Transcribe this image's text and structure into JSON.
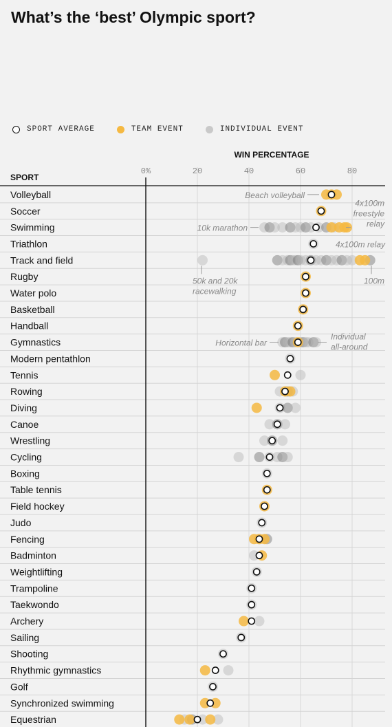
{
  "title": "What’s the ‘best’ Olympic sport?",
  "legend": {
    "average": "SPORT AVERAGE",
    "team": "TEAM EVENT",
    "individual": "INDIVIDUAL EVENT"
  },
  "colors": {
    "team": "#f5b942",
    "individual": "#b5b5b5",
    "individual_dark": "#6e6e6e",
    "average_fill": "#ffffff",
    "average_stroke": "#111111"
  },
  "chart_data": {
    "type": "scatter",
    "title": "What’s the ‘best’ Olympic sport?",
    "xlabel": "WIN PERCENTAGE",
    "ylabel": "SPORT",
    "xlim": [
      0,
      90
    ],
    "xticks": [
      0,
      20,
      40,
      60,
      80
    ],
    "xtick_labels": [
      "0%",
      "20",
      "40",
      "60",
      "80"
    ],
    "sports": [
      {
        "name": "Volleyball",
        "avg": 72,
        "team": [
          70,
          72,
          74
        ],
        "individual": []
      },
      {
        "name": "Soccer",
        "avg": 68,
        "team": [
          68
        ],
        "individual": []
      },
      {
        "name": "Swimming",
        "avg": 66,
        "team": [
          72,
          75,
          77,
          78
        ],
        "individual": [
          46,
          48,
          50,
          53,
          56,
          58,
          60,
          62,
          64,
          67,
          70,
          73
        ]
      },
      {
        "name": "Triathlon",
        "avg": 65,
        "team": [],
        "individual": [
          65
        ]
      },
      {
        "name": "Track and field",
        "avg": 64,
        "team": [
          83,
          85
        ],
        "individual": [
          22,
          51,
          53,
          55,
          56,
          57,
          58,
          59,
          60,
          62,
          64,
          66,
          68,
          70,
          72,
          74,
          76,
          78,
          80,
          87
        ]
      },
      {
        "name": "Rugby",
        "avg": 62,
        "team": [
          62
        ],
        "individual": []
      },
      {
        "name": "Water polo",
        "avg": 62,
        "team": [
          62
        ],
        "individual": []
      },
      {
        "name": "Basketball",
        "avg": 61,
        "team": [
          61
        ],
        "individual": []
      },
      {
        "name": "Handball",
        "avg": 59,
        "team": [
          59
        ],
        "individual": []
      },
      {
        "name": "Gymnastics",
        "avg": 59,
        "team": [
          59
        ],
        "individual": [
          53,
          54,
          55,
          56,
          57,
          58,
          60,
          61,
          62,
          63,
          65,
          66
        ]
      },
      {
        "name": "Modern pentathlon",
        "avg": 56,
        "team": [],
        "individual": [
          56
        ]
      },
      {
        "name": "Tennis",
        "avg": 55,
        "team": [
          50
        ],
        "individual": [
          60
        ]
      },
      {
        "name": "Rowing",
        "avg": 54,
        "team": [
          54,
          56
        ],
        "individual": [
          52,
          55,
          57
        ]
      },
      {
        "name": "Diving",
        "avg": 52,
        "team": [
          43
        ],
        "individual": [
          52,
          55,
          58
        ]
      },
      {
        "name": "Canoe",
        "avg": 51,
        "team": [],
        "individual": [
          48,
          51,
          54
        ]
      },
      {
        "name": "Wrestling",
        "avg": 49,
        "team": [],
        "individual": [
          46,
          49,
          53
        ]
      },
      {
        "name": "Cycling",
        "avg": 48,
        "team": [],
        "individual": [
          36,
          44,
          48,
          51,
          53,
          55
        ]
      },
      {
        "name": "Boxing",
        "avg": 47,
        "team": [],
        "individual": [
          47
        ]
      },
      {
        "name": "Table tennis",
        "avg": 47,
        "team": [
          47
        ],
        "individual": []
      },
      {
        "name": "Field hockey",
        "avg": 46,
        "team": [
          46
        ],
        "individual": []
      },
      {
        "name": "Judo",
        "avg": 45,
        "team": [],
        "individual": [
          45
        ]
      },
      {
        "name": "Fencing",
        "avg": 44,
        "team": [
          42,
          44,
          46
        ],
        "individual": [
          44,
          47
        ]
      },
      {
        "name": "Badminton",
        "avg": 44,
        "team": [
          45
        ],
        "individual": [
          42
        ]
      },
      {
        "name": "Weightlifting",
        "avg": 43,
        "team": [],
        "individual": [
          43
        ]
      },
      {
        "name": "Trampoline",
        "avg": 41,
        "team": [],
        "individual": [
          41
        ]
      },
      {
        "name": "Taekwondo",
        "avg": 41,
        "team": [],
        "individual": [
          41
        ]
      },
      {
        "name": "Archery",
        "avg": 41,
        "team": [
          38
        ],
        "individual": [
          44
        ]
      },
      {
        "name": "Sailing",
        "avg": 37,
        "team": [],
        "individual": [
          37
        ]
      },
      {
        "name": "Shooting",
        "avg": 30,
        "team": [],
        "individual": [
          30
        ]
      },
      {
        "name": "Rhythmic gymnastics",
        "avg": 27,
        "team": [
          23
        ],
        "individual": [
          32
        ]
      },
      {
        "name": "Golf",
        "avg": 26,
        "team": [],
        "individual": [
          26
        ]
      },
      {
        "name": "Synchronized swimming",
        "avg": 25,
        "team": [
          23,
          27
        ],
        "individual": []
      },
      {
        "name": "Equestrian",
        "avg": 20,
        "team": [
          13,
          17,
          25
        ],
        "individual": [
          15,
          18,
          22,
          28
        ]
      }
    ],
    "annotations": [
      {
        "text": "Beach volleyball",
        "row": "Volleyball"
      },
      {
        "text": "4x100m freestyle relay",
        "row": "Swimming"
      },
      {
        "text": "10k marathon",
        "row": "Swimming"
      },
      {
        "text": "4x100m relay",
        "row": "Triathlon"
      },
      {
        "text": "50k and 20k racewalking",
        "row": "Track and field"
      },
      {
        "text": "100m",
        "row": "Track and field"
      },
      {
        "text": "Horizontal bar",
        "row": "Gymnastics"
      },
      {
        "text": "Individual all-around",
        "row": "Gymnastics"
      }
    ]
  }
}
